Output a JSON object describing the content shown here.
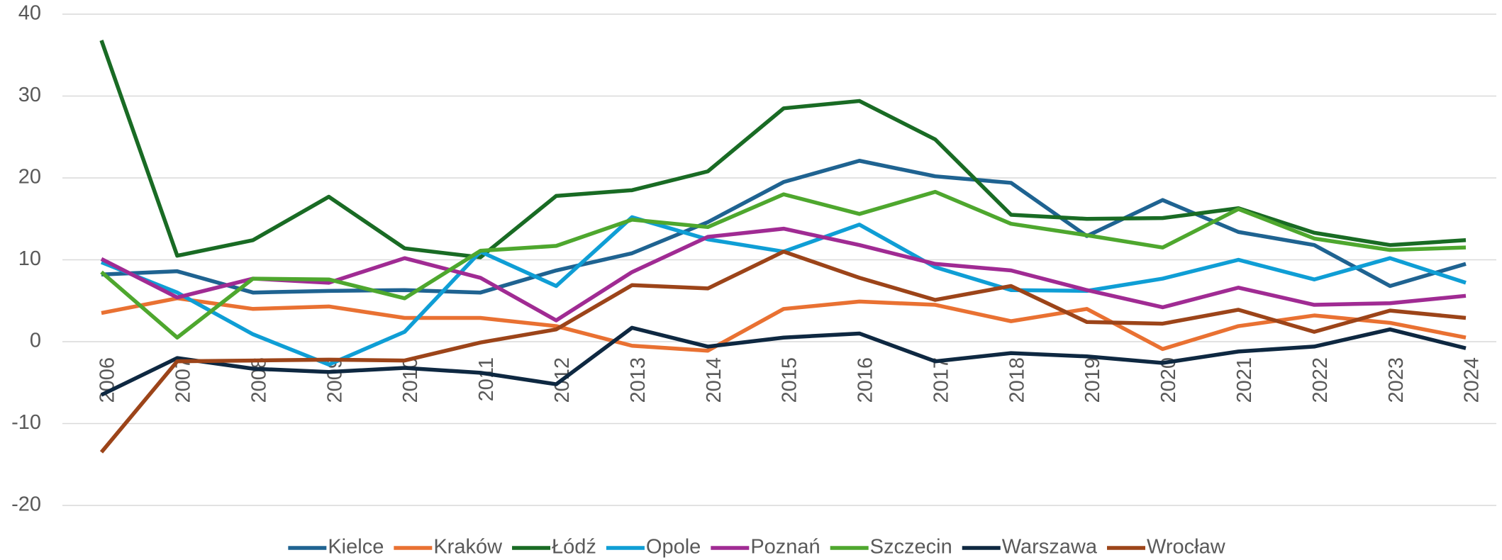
{
  "chart_data": {
    "type": "line",
    "categories": [
      "2006",
      "2007",
      "2008",
      "2009",
      "2010",
      "2011",
      "2012",
      "2013",
      "2014",
      "2015",
      "2016",
      "2017",
      "2018",
      "2019",
      "2020",
      "2021",
      "2022",
      "2023",
      "2024"
    ],
    "ylim": [
      -20,
      40
    ],
    "yticks": [
      -20,
      -10,
      0,
      10,
      20,
      30,
      40
    ],
    "grid": true,
    "legend": "bottom",
    "series": [
      {
        "name": "Kielce",
        "color": "#1f6391",
        "values": [
          8.2,
          8.6,
          6.0,
          6.2,
          6.3,
          6.0,
          8.7,
          10.8,
          14.6,
          19.5,
          22.1,
          20.2,
          19.4,
          12.9,
          17.3,
          13.4,
          11.8,
          6.8,
          9.5
        ]
      },
      {
        "name": "Kraków",
        "color": "#e97132",
        "values": [
          3.5,
          5.3,
          4.0,
          4.3,
          2.9,
          2.9,
          1.9,
          -0.5,
          -1.1,
          4.0,
          4.9,
          4.5,
          2.5,
          4.0,
          -0.9,
          1.9,
          3.2,
          2.3,
          0.5
        ]
      },
      {
        "name": "Łódź",
        "color": "#196b24",
        "values": [
          36.8,
          10.5,
          12.4,
          17.7,
          11.4,
          10.3,
          17.8,
          18.5,
          20.8,
          28.5,
          29.4,
          24.7,
          15.5,
          15.0,
          15.1,
          16.3,
          13.3,
          11.8,
          12.4
        ]
      },
      {
        "name": "Opole",
        "color": "#0f9ed5",
        "values": [
          9.7,
          6.0,
          0.9,
          -2.8,
          1.2,
          11.0,
          6.8,
          15.2,
          12.5,
          11.0,
          14.3,
          9.1,
          6.3,
          6.2,
          7.7,
          10.0,
          7.6,
          10.2,
          7.2
        ]
      },
      {
        "name": "Poznań",
        "color": "#a02b93",
        "values": [
          10.1,
          5.4,
          7.7,
          7.2,
          10.2,
          7.8,
          2.6,
          8.5,
          12.8,
          13.8,
          11.8,
          9.5,
          8.7,
          6.3,
          4.2,
          6.6,
          4.5,
          4.7,
          5.6
        ]
      },
      {
        "name": "Szczecin",
        "color": "#4ea72e",
        "values": [
          8.5,
          0.5,
          7.7,
          7.6,
          5.3,
          11.1,
          11.7,
          14.9,
          14.0,
          18.0,
          15.6,
          18.3,
          14.4,
          13.0,
          11.5,
          16.2,
          12.6,
          11.2,
          11.5
        ]
      },
      {
        "name": "Warszawa",
        "color": "#0e2841",
        "values": [
          -6.5,
          -2.0,
          -3.3,
          -3.7,
          -3.2,
          -3.8,
          -5.2,
          1.7,
          -0.6,
          0.5,
          1.0,
          -2.4,
          -1.4,
          -1.8,
          -2.6,
          -1.2,
          -0.6,
          1.5,
          -0.8
        ]
      },
      {
        "name": "Wrocław",
        "color": "#9c4419",
        "values": [
          -13.5,
          -2.4,
          -2.3,
          -2.2,
          -2.3,
          -0.1,
          1.5,
          6.9,
          6.5,
          11.0,
          7.8,
          5.1,
          6.8,
          2.4,
          2.2,
          3.9,
          1.2,
          3.8,
          2.9
        ]
      }
    ]
  }
}
